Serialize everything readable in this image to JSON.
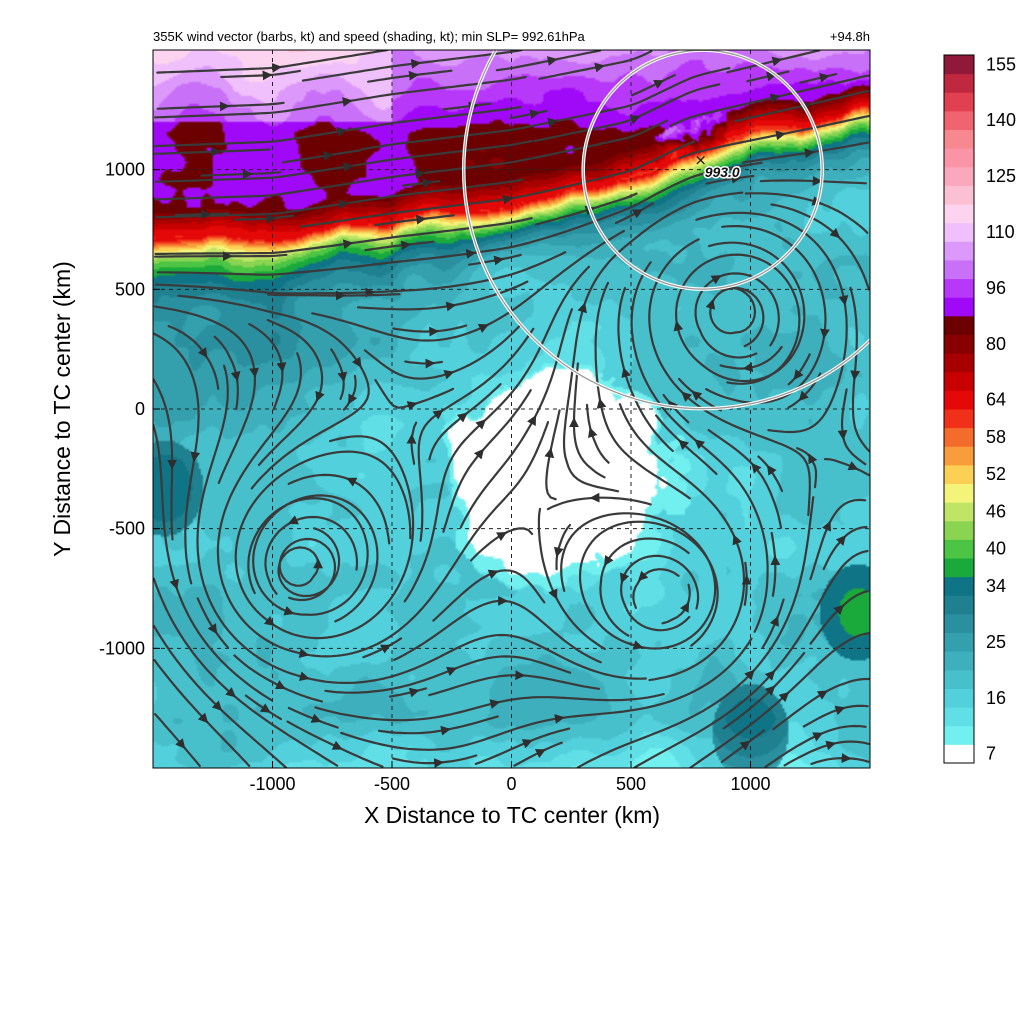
{
  "chart_data": {
    "type": "heatmap",
    "title_left": "355K wind vector (barbs, kt) and speed (shading, kt); min SLP= 992.61hPa",
    "title_right": "+94.8h",
    "xlabel": "X Distance to TC center (km)",
    "ylabel": "Y Distance to TC center (km)",
    "xlim": [
      -1500,
      1500
    ],
    "ylim": [
      -1500,
      1500
    ],
    "xticks": [
      -1000,
      -500,
      0,
      500,
      1000
    ],
    "yticks": [
      -1000,
      -500,
      0,
      500,
      1000
    ],
    "xtick_labels": [
      "-1000",
      "-500",
      "0",
      "500",
      "1000"
    ],
    "ytick_labels": [
      "-1000",
      "-500",
      "0",
      "500",
      "1000"
    ],
    "grid": true,
    "colorbar": {
      "levels": [
        7,
        10,
        13,
        16,
        19,
        22,
        25,
        28,
        31,
        34,
        37,
        40,
        43,
        46,
        49,
        52,
        55,
        58,
        61,
        64,
        70,
        75,
        80,
        85,
        90,
        96,
        101,
        106,
        110,
        115,
        120,
        125,
        130,
        135,
        140,
        145,
        150,
        155
      ],
      "tick_labels": [
        "7",
        "16",
        "25",
        "34",
        "40",
        "46",
        "52",
        "58",
        "64",
        "80",
        "96",
        "110",
        "125",
        "140",
        "155"
      ],
      "colors": [
        "#ffffff",
        "#72f0f0",
        "#60e0e6",
        "#52d0dc",
        "#48c0cc",
        "#3eb0bd",
        "#34a0ae",
        "#2a90a0",
        "#1f8090",
        "#0f7486",
        "#1aaa3c",
        "#4cc444",
        "#8ad452",
        "#c0e466",
        "#f4f47a",
        "#fcd054",
        "#f89c3c",
        "#f46c2c",
        "#f03018",
        "#e40808",
        "#c80000",
        "#a80000",
        "#880000",
        "#6c0000",
        "#a008f8",
        "#b838fa",
        "#c870f8",
        "#dc98fa",
        "#f0c0fc",
        "#fcd4f0",
        "#fcc0d4",
        "#fca8bc",
        "#fc94a8",
        "#f88890",
        "#f06470",
        "#e04050",
        "#c02840",
        "#901838"
      ]
    },
    "center_marker": {
      "x": 800,
      "y": 1040,
      "label": "993.0"
    },
    "circles_km": [
      {
        "cx": 800,
        "cy": 1000,
        "r": 500
      },
      {
        "cx": 800,
        "cy": 1000,
        "r": 1000
      }
    ],
    "speed_field": {
      "jet_axis_y": [
        [
          -1500,
          700
        ],
        [
          -1000,
          720
        ],
        [
          -500,
          800
        ],
        [
          0,
          860
        ],
        [
          500,
          960
        ],
        [
          750,
          1080
        ],
        [
          1000,
          1140
        ],
        [
          1500,
          1260
        ]
      ],
      "jet_peak_kt": 100,
      "background_kt": 20,
      "calm_zones": [
        {
          "x": 200,
          "y": -300,
          "rx": 500,
          "ry": 450,
          "min_kt": 5
        }
      ],
      "weak_green_patches": [
        {
          "x": -1450,
          "y": -330,
          "kt": 36
        },
        {
          "x": 1450,
          "y": -850,
          "kt": 38
        },
        {
          "x": 1000,
          "y": -1350,
          "kt": 36
        }
      ]
    },
    "vortices": [
      {
        "x": -900,
        "y": -680,
        "sense": "cyclonic"
      },
      {
        "x": 920,
        "y": 400,
        "sense": "anticyclonic"
      },
      {
        "x": 650,
        "y": -800,
        "sense": "cyclonic"
      }
    ],
    "streamline_note": "streamlines drawn from wind field"
  }
}
